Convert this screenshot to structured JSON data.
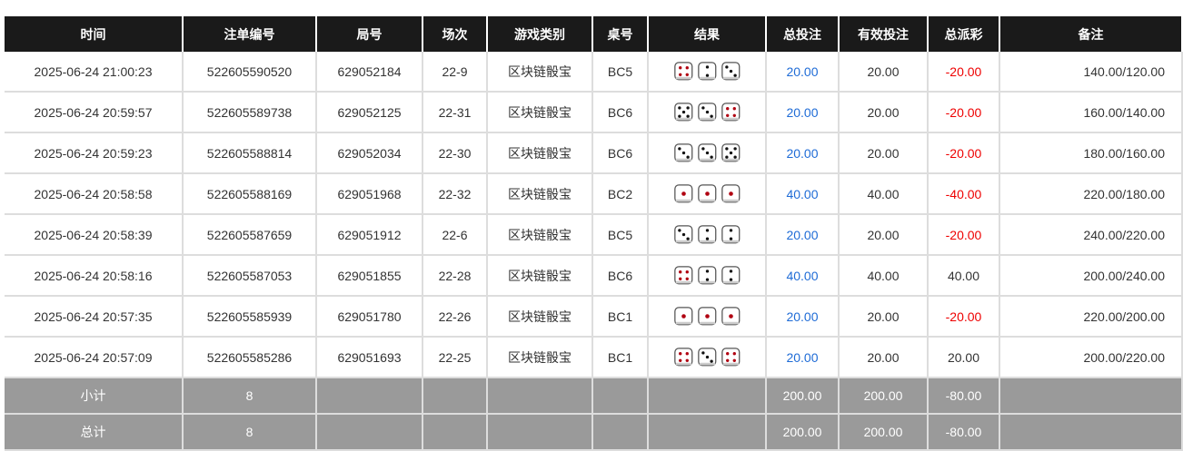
{
  "colors": {
    "header_bg": "#1a1a1a",
    "footer_bg": "#9a9a9a",
    "bet_blue": "#1e6bd6",
    "loss_red": "#e00000"
  },
  "headers": [
    "时间",
    "注单编号",
    "局号",
    "场次",
    "游戏类别",
    "桌号",
    "结果",
    "总投注",
    "有效投注",
    "总派彩",
    "备注"
  ],
  "rows": [
    {
      "time": "2025-06-24 21:00:23",
      "order": "522605590520",
      "round": "629052184",
      "session": "22-9",
      "game": "区块链骰宝",
      "table": "BC5",
      "dice": [
        4,
        2,
        3
      ],
      "bet": "20.00",
      "valid": "20.00",
      "payout": "-20.00",
      "remark": "140.00/120.00"
    },
    {
      "time": "2025-06-24 20:59:57",
      "order": "522605589738",
      "round": "629052125",
      "session": "22-31",
      "game": "区块链骰宝",
      "table": "BC6",
      "dice": [
        5,
        3,
        4
      ],
      "bet": "20.00",
      "valid": "20.00",
      "payout": "-20.00",
      "remark": "160.00/140.00"
    },
    {
      "time": "2025-06-24 20:59:23",
      "order": "522605588814",
      "round": "629052034",
      "session": "22-30",
      "game": "区块链骰宝",
      "table": "BC6",
      "dice": [
        3,
        3,
        5
      ],
      "bet": "20.00",
      "valid": "20.00",
      "payout": "-20.00",
      "remark": "180.00/160.00"
    },
    {
      "time": "2025-06-24 20:58:58",
      "order": "522605588169",
      "round": "629051968",
      "session": "22-32",
      "game": "区块链骰宝",
      "table": "BC2",
      "dice": [
        1,
        1,
        1
      ],
      "bet": "40.00",
      "valid": "40.00",
      "payout": "-40.00",
      "remark": "220.00/180.00"
    },
    {
      "time": "2025-06-24 20:58:39",
      "order": "522605587659",
      "round": "629051912",
      "session": "22-6",
      "game": "区块链骰宝",
      "table": "BC5",
      "dice": [
        3,
        2,
        2
      ],
      "bet": "20.00",
      "valid": "20.00",
      "payout": "-20.00",
      "remark": "240.00/220.00"
    },
    {
      "time": "2025-06-24 20:58:16",
      "order": "522605587053",
      "round": "629051855",
      "session": "22-28",
      "game": "区块链骰宝",
      "table": "BC6",
      "dice": [
        4,
        2,
        2
      ],
      "bet": "40.00",
      "valid": "40.00",
      "payout": "40.00",
      "remark": "200.00/240.00"
    },
    {
      "time": "2025-06-24 20:57:35",
      "order": "522605585939",
      "round": "629051780",
      "session": "22-26",
      "game": "区块链骰宝",
      "table": "BC1",
      "dice": [
        1,
        1,
        1
      ],
      "bet": "20.00",
      "valid": "20.00",
      "payout": "-20.00",
      "remark": "220.00/200.00"
    },
    {
      "time": "2025-06-24 20:57:09",
      "order": "522605585286",
      "round": "629051693",
      "session": "22-25",
      "game": "区块链骰宝",
      "table": "BC1",
      "dice": [
        4,
        3,
        4
      ],
      "bet": "20.00",
      "valid": "20.00",
      "payout": "20.00",
      "remark": "200.00/220.00"
    }
  ],
  "footer": [
    {
      "label": "小计",
      "count": "8",
      "bet": "200.00",
      "valid": "200.00",
      "payout": "-80.00"
    },
    {
      "label": "总计",
      "count": "8",
      "bet": "200.00",
      "valid": "200.00",
      "payout": "-80.00"
    }
  ]
}
